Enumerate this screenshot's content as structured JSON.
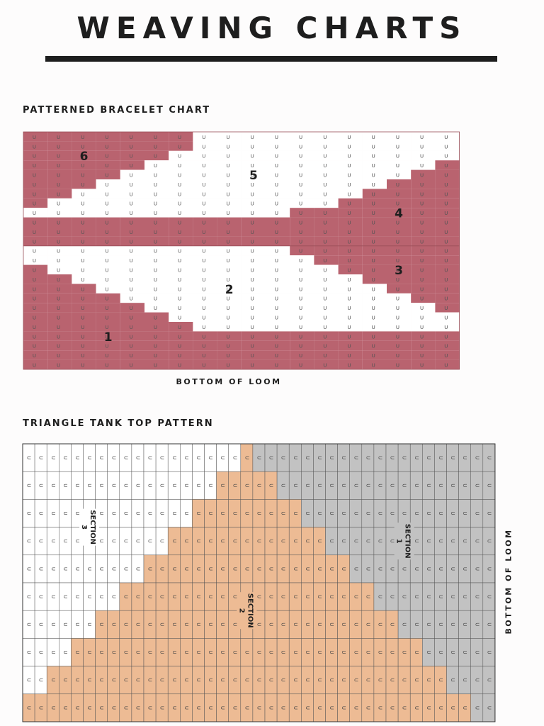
{
  "header": {
    "title": "WEAVING CHARTS"
  },
  "bracelet_chart": {
    "heading": "PATTERNED BRACELET CHART",
    "bottom_label": "BOTTOM OF LOOM",
    "grid_symbol": "U",
    "columns": 18,
    "rows": 25,
    "colors": {
      "pattern": "#b9636f",
      "background": "#ffffff",
      "grid_line": "#9a4f59"
    },
    "section_numbers": [
      {
        "label": "1",
        "row": 21,
        "col": 3
      },
      {
        "label": "2",
        "row": 16,
        "col": 8
      },
      {
        "label": "3",
        "row": 14,
        "col": 15
      },
      {
        "label": "4",
        "row": 8,
        "col": 15
      },
      {
        "label": "5",
        "row": 4,
        "col": 9
      },
      {
        "label": "6",
        "row": 2,
        "col": 2
      }
    ]
  },
  "tank_chart": {
    "heading": "TRIANGLE TANK TOP PATTERN",
    "bottom_label": "BOTTOM OF LOOM",
    "grid_symbol": "U",
    "columns": 39,
    "rows": 10,
    "colors": {
      "section_1": "#c2c2c2",
      "section_2": "#edbb94",
      "section_3": "#ffffff",
      "grid_line": "#555555"
    },
    "section_labels": [
      {
        "title": "SECTION",
        "number": "3"
      },
      {
        "title": "SECTION",
        "number": "2"
      },
      {
        "title": "SECTION",
        "number": "1"
      }
    ]
  }
}
